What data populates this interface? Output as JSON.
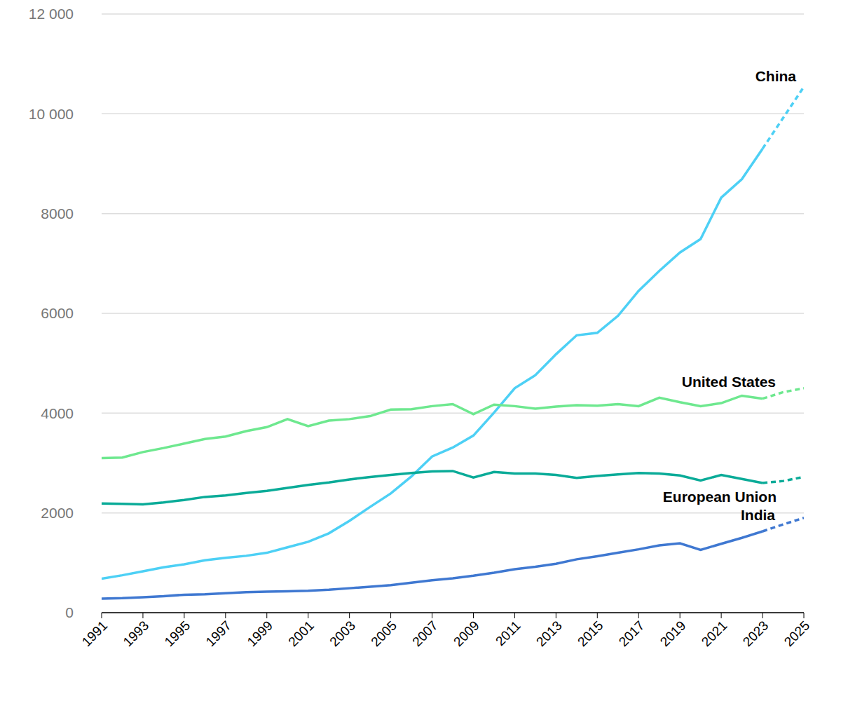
{
  "chart_data": {
    "type": "line",
    "x": [
      1991,
      1992,
      1993,
      1994,
      1995,
      1996,
      1997,
      1998,
      1999,
      2000,
      2001,
      2002,
      2003,
      2004,
      2005,
      2006,
      2007,
      2008,
      2009,
      2010,
      2011,
      2012,
      2013,
      2014,
      2015,
      2016,
      2017,
      2018,
      2019,
      2020,
      2021,
      2022,
      2023,
      2024,
      2025
    ],
    "xlim": [
      1991,
      2025
    ],
    "xticks": [
      1991,
      1993,
      1995,
      1997,
      1999,
      2001,
      2003,
      2005,
      2007,
      2009,
      2011,
      2013,
      2015,
      2017,
      2019,
      2021,
      2023,
      2025
    ],
    "ylim": [
      0,
      12000
    ],
    "yticks": [
      0,
      2000,
      4000,
      6000,
      8000,
      {
        "value": 10000,
        "label": "10 000"
      },
      {
        "value": 12000,
        "label": "12 000"
      }
    ],
    "grid": true,
    "series": [
      {
        "name": "China",
        "color": "#4dd0f5",
        "line_style": "solid",
        "values": [
          680,
          750,
          830,
          910,
          970,
          1050,
          1100,
          1140,
          1200,
          1310,
          1420,
          1590,
          1840,
          2120,
          2390,
          2730,
          3130,
          3310,
          3550,
          4010,
          4500,
          4760,
          5180,
          5560,
          5610,
          5950,
          6450,
          6850,
          7220,
          7490,
          8320,
          8690,
          9300,
          null,
          null
        ]
      },
      {
        "name": "China",
        "color": "#4dd0f5",
        "line_style": "dashed",
        "values": [
          null,
          null,
          null,
          null,
          null,
          null,
          null,
          null,
          null,
          null,
          null,
          null,
          null,
          null,
          null,
          null,
          null,
          null,
          null,
          null,
          null,
          null,
          null,
          null,
          null,
          null,
          null,
          null,
          null,
          null,
          null,
          null,
          9300,
          9920,
          10540
        ]
      },
      {
        "name": "United States",
        "color": "#6ee88f",
        "line_style": "solid",
        "values": [
          3100,
          3110,
          3220,
          3300,
          3390,
          3480,
          3530,
          3640,
          3720,
          3880,
          3740,
          3850,
          3880,
          3940,
          4070,
          4080,
          4140,
          4180,
          3980,
          4170,
          4140,
          4090,
          4130,
          4160,
          4150,
          4180,
          4140,
          4310,
          4220,
          4140,
          4200,
          4350,
          4290,
          null,
          null
        ]
      },
      {
        "name": "United States",
        "color": "#6ee88f",
        "line_style": "dashed",
        "values": [
          null,
          null,
          null,
          null,
          null,
          null,
          null,
          null,
          null,
          null,
          null,
          null,
          null,
          null,
          null,
          null,
          null,
          null,
          null,
          null,
          null,
          null,
          null,
          null,
          null,
          null,
          null,
          null,
          null,
          null,
          null,
          null,
          4290,
          4420,
          4500
        ]
      },
      {
        "name": "European Union",
        "color": "#0aab98",
        "line_style": "solid",
        "values": [
          2190,
          2180,
          2170,
          2210,
          2260,
          2320,
          2350,
          2400,
          2440,
          2500,
          2560,
          2610,
          2670,
          2720,
          2760,
          2800,
          2830,
          2840,
          2710,
          2820,
          2790,
          2790,
          2760,
          2700,
          2740,
          2770,
          2800,
          2790,
          2750,
          2650,
          2760,
          2680,
          2600,
          null,
          null
        ]
      },
      {
        "name": "European Union",
        "color": "#0aab98",
        "line_style": "dashed",
        "values": [
          null,
          null,
          null,
          null,
          null,
          null,
          null,
          null,
          null,
          null,
          null,
          null,
          null,
          null,
          null,
          null,
          null,
          null,
          null,
          null,
          null,
          null,
          null,
          null,
          null,
          null,
          null,
          null,
          null,
          null,
          null,
          null,
          2600,
          2640,
          2720
        ]
      },
      {
        "name": "India",
        "color": "#3f78d1",
        "line_style": "solid",
        "values": [
          280,
          290,
          310,
          330,
          360,
          370,
          390,
          410,
          420,
          430,
          440,
          460,
          490,
          520,
          550,
          600,
          650,
          690,
          740,
          800,
          870,
          920,
          980,
          1070,
          1130,
          1200,
          1270,
          1350,
          1390,
          1260,
          1380,
          1500,
          1630,
          null,
          null
        ]
      },
      {
        "name": "India",
        "color": "#3f78d1",
        "line_style": "dashed",
        "values": [
          null,
          null,
          null,
          null,
          null,
          null,
          null,
          null,
          null,
          null,
          null,
          null,
          null,
          null,
          null,
          null,
          null,
          null,
          null,
          null,
          null,
          null,
          null,
          null,
          null,
          null,
          null,
          null,
          null,
          null,
          null,
          null,
          1630,
          1770,
          1900
        ]
      }
    ]
  }
}
